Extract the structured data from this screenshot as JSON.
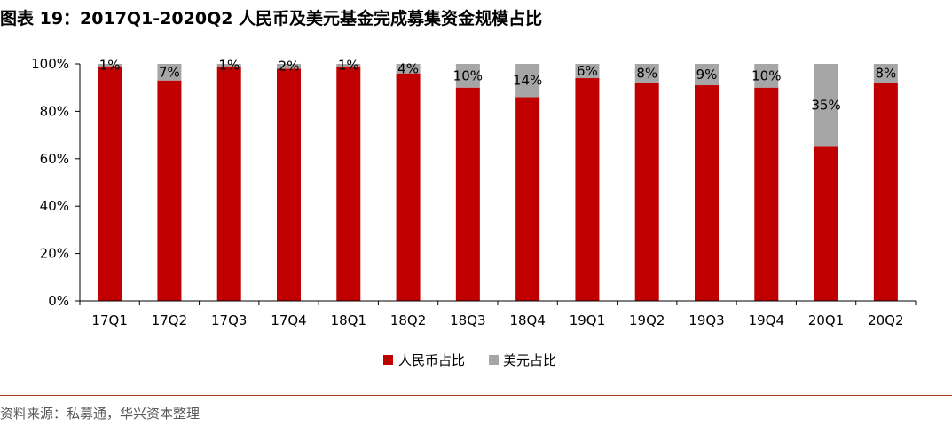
{
  "title": "图表 19：2017Q1-2020Q2 人民币及美元基金完成募集资金规模占比",
  "source": "资料来源：私募通，华兴资本整理",
  "colors": {
    "rmb": "#c00000",
    "usd": "#a6a6a6",
    "rule": "#a0361f"
  },
  "chart_data": {
    "type": "bar",
    "stacked": true,
    "categories": [
      "17Q1",
      "17Q2",
      "17Q3",
      "17Q4",
      "18Q1",
      "18Q2",
      "18Q3",
      "18Q4",
      "19Q1",
      "19Q2",
      "19Q3",
      "19Q4",
      "20Q1",
      "20Q2"
    ],
    "series": [
      {
        "name": "人民币占比",
        "values": [
          99,
          93,
          99,
          98,
          99,
          96,
          90,
          86,
          94,
          92,
          91,
          90,
          65,
          92
        ]
      },
      {
        "name": "美元占比",
        "values": [
          1,
          7,
          1,
          2,
          1,
          4,
          10,
          14,
          6,
          8,
          9,
          10,
          35,
          8
        ],
        "labels": [
          "1%",
          "7%",
          "1%",
          "2%",
          "1%",
          "4%",
          "10%",
          "14%",
          "6%",
          "8%",
          "9%",
          "10%",
          "35%",
          "8%"
        ]
      }
    ],
    "yticks": [
      "0%",
      "20%",
      "40%",
      "60%",
      "80%",
      "100%"
    ],
    "ylim": [
      0,
      100
    ],
    "legend_position": "bottom-center",
    "grid": false
  }
}
